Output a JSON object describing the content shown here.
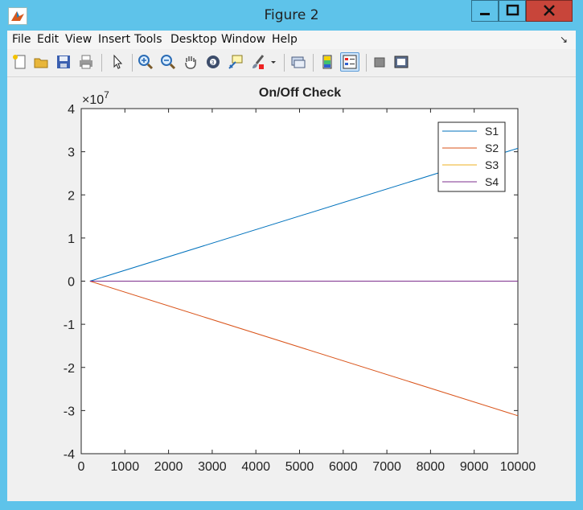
{
  "window": {
    "title": "Figure 2"
  },
  "menu": [
    "File",
    "Edit",
    "View",
    "Insert",
    "Tools",
    "Desktop",
    "Window",
    "Help"
  ],
  "toolbar": {
    "icons": [
      "new-figure-icon",
      "open-file-icon",
      "save-icon",
      "print-icon",
      "edit-plot-arrow-icon",
      "zoom-in-icon",
      "zoom-out-icon",
      "pan-hand-icon",
      "rotate-3d-icon",
      "data-cursor-icon",
      "brush-icon",
      "link-plot-icon",
      "colorbar-icon",
      "legend-icon",
      "hide-plot-tools-icon",
      "show-plot-tools-icon"
    ]
  },
  "colors": {
    "S1": "#0072bd",
    "S2": "#d95319",
    "S3": "#edb120",
    "S4": "#7e2f8e"
  },
  "chart_data": {
    "type": "line",
    "title": "On/Off Check",
    "xlabel": "",
    "ylabel": "",
    "exponent_label": "×10",
    "exponent_power": "7",
    "xlim": [
      0,
      10000
    ],
    "ylim": [
      -4,
      4
    ],
    "xticks": [
      "0",
      "1000",
      "2000",
      "3000",
      "4000",
      "5000",
      "6000",
      "7000",
      "8000",
      "9000",
      "10000"
    ],
    "yticks": [
      "-4",
      "-3",
      "-2",
      "-1",
      "0",
      "1",
      "2",
      "3",
      "4"
    ],
    "legend_position": "top-right",
    "series": [
      {
        "name": "S1",
        "x": [
          200,
          10000
        ],
        "y": [
          0,
          3.08
        ]
      },
      {
        "name": "S2",
        "x": [
          200,
          10000
        ],
        "y": [
          0,
          -3.12
        ]
      },
      {
        "name": "S3",
        "x": [
          200,
          10000
        ],
        "y": [
          0,
          0
        ]
      },
      {
        "name": "S4",
        "x": [
          200,
          10000
        ],
        "y": [
          0,
          0
        ]
      }
    ],
    "y_units_scale": 10000000
  }
}
